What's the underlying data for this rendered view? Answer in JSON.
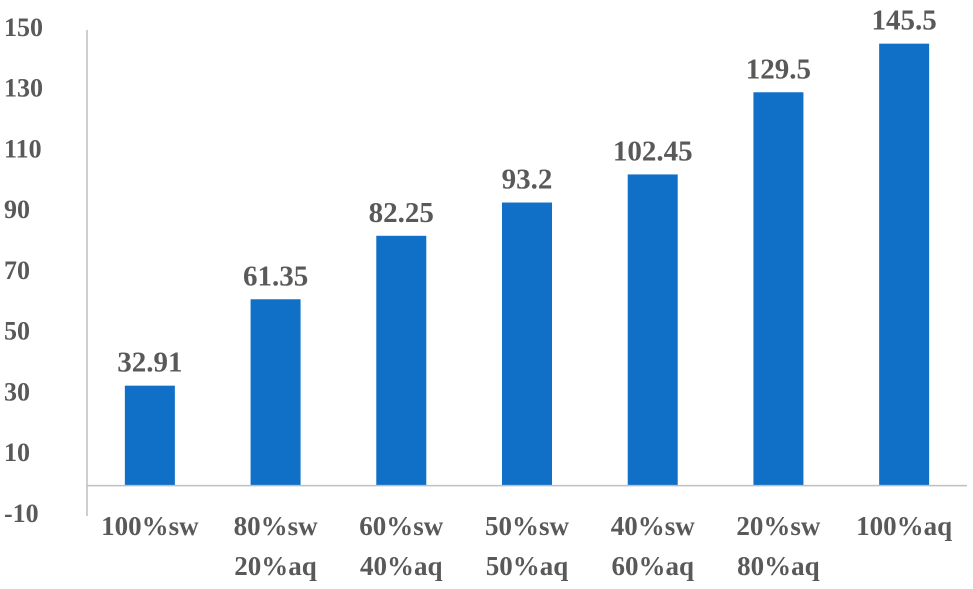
{
  "chart_data": {
    "type": "bar",
    "categories": [
      [
        "100%sw"
      ],
      [
        "80%sw",
        "20%aq"
      ],
      [
        "60%sw",
        "40%aq"
      ],
      [
        "50%sw",
        "50%aq"
      ],
      [
        "40%sw",
        "60%aq"
      ],
      [
        "20%sw",
        "80%aq"
      ],
      [
        "100%aq"
      ]
    ],
    "values": [
      32.91,
      61.35,
      82.25,
      93.2,
      102.45,
      129.5,
      145.5
    ],
    "value_labels": [
      "32.91",
      "61.35",
      "82.25",
      "93.2",
      "102.45",
      "129.5",
      "145.5"
    ],
    "yticks": [
      -10,
      10,
      30,
      50,
      70,
      90,
      110,
      130,
      150
    ],
    "ylim": [
      -10,
      150
    ],
    "baseline": 0,
    "title": "",
    "xlabel": "",
    "ylabel": "",
    "grid": false,
    "legend": "none",
    "colors": {
      "bar": "#1070C8",
      "text": "#595959",
      "axis": "#BFBFBF"
    }
  }
}
